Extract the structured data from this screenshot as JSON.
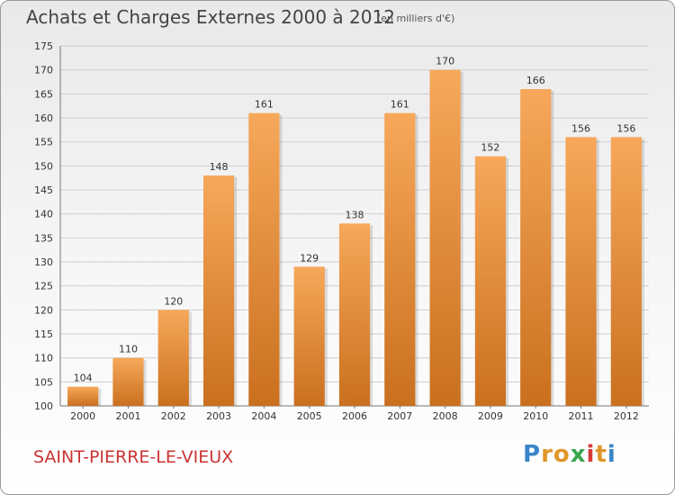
{
  "header": {
    "title": "Achats et Charges Externes 2000 à 2012",
    "subtitle": "(en milliers d'€)"
  },
  "footer": {
    "commune": "SAINT-PIERRE-LE-VIEUX",
    "logo_letters": [
      "P",
      "r",
      "o",
      "x",
      "i",
      "t",
      "i"
    ],
    "logo_colors": [
      "#3a86c8",
      "#e0962a",
      "#e0962a",
      "#3aa64a",
      "#d63a3a",
      "#e0962a",
      "#3a86c8"
    ]
  },
  "colors": {
    "bar": "#f0953f",
    "bar_light": "#f7a85a",
    "bar_dark": "#c9701f",
    "grid": "#cfcfcf",
    "axis": "#777777"
  },
  "chart_data": {
    "type": "bar",
    "categories": [
      "2000",
      "2001",
      "2002",
      "2003",
      "2004",
      "2005",
      "2006",
      "2007",
      "2008",
      "2009",
      "2010",
      "2011",
      "2012"
    ],
    "values": [
      104,
      110,
      120,
      148,
      161,
      129,
      138,
      161,
      170,
      152,
      166,
      156,
      156
    ],
    "title": "Achats et Charges Externes 2000 à 2012",
    "subtitle": "(en milliers d'€)",
    "ylim": [
      100,
      175
    ],
    "yticks": [
      100,
      105,
      110,
      115,
      120,
      125,
      130,
      135,
      140,
      145,
      150,
      155,
      160,
      165,
      170,
      175
    ],
    "grid": true,
    "data_labels": true
  }
}
